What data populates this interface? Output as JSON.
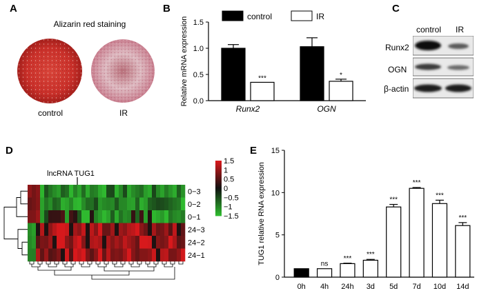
{
  "panels": {
    "A": {
      "letter": "A",
      "title": "Alizarin red staining",
      "labels": [
        "control",
        "IR"
      ]
    },
    "C": {
      "letter": "C",
      "columns": [
        "control",
        "IR"
      ],
      "rows": [
        "Runx2",
        "OGN",
        "β-actin"
      ]
    },
    "D": {
      "letter": "D",
      "annotation": "lncRNA TUG1",
      "row_labels": [
        "0−3",
        "0−2",
        "0−1",
        "24−3",
        "24−2",
        "24−1"
      ],
      "scale_ticks": [
        "1.5",
        "1",
        "0.5",
        "0",
        "−0.5",
        "−1",
        "−1.5"
      ],
      "colors": {
        "high": "#d7191c",
        "mid": "#111111",
        "low": "#2fb92f"
      }
    }
  },
  "chart_data": [
    {
      "panel": "B",
      "type": "bar",
      "ylabel": "Relative mRNA expression",
      "xlabel": "",
      "categories": [
        "Runx2",
        "OGN"
      ],
      "series": [
        {
          "name": "control",
          "values": [
            1.0,
            1.03
          ],
          "errors": [
            0.07,
            0.17
          ],
          "color": "#000000"
        },
        {
          "name": "IR",
          "values": [
            0.35,
            0.37
          ],
          "errors": [
            0.0,
            0.04
          ],
          "color": "#ffffff"
        }
      ],
      "significance": [
        "***",
        "*"
      ],
      "ylim": [
        0,
        1.5
      ],
      "yticks": [
        "0.0",
        "0.5",
        "1.0",
        "1.5"
      ],
      "legend": "top"
    },
    {
      "panel": "E",
      "type": "bar",
      "ylabel": "TUG1 relative RNA expression",
      "xlabel": "",
      "categories": [
        "0h",
        "4h",
        "24h",
        "3d",
        "5d",
        "7d",
        "10d",
        "14d"
      ],
      "values": [
        1.0,
        1.0,
        1.6,
        2.0,
        8.3,
        10.5,
        8.7,
        6.1
      ],
      "errors": [
        0.0,
        0.0,
        0.05,
        0.1,
        0.3,
        0.1,
        0.4,
        0.35
      ],
      "significance": [
        "",
        "ns",
        "***",
        "***",
        "***",
        "***",
        "***",
        "***"
      ],
      "fills": [
        "#000000",
        "#ffffff",
        "#ffffff",
        "#ffffff",
        "#ffffff",
        "#ffffff",
        "#ffffff",
        "#ffffff"
      ],
      "ylim": [
        0,
        15
      ],
      "yticks": [
        "0",
        "5",
        "10",
        "15"
      ]
    }
  ]
}
